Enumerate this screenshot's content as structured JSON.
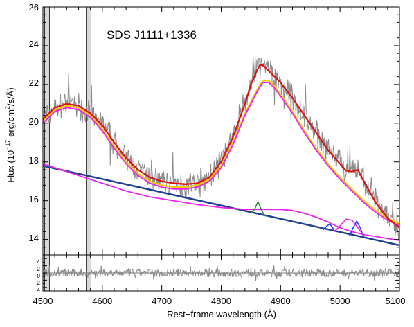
{
  "chart_data": {
    "type": "line",
    "title": "SDS J1111+1336",
    "xlabel": "Rest−frame wavelength (Å)",
    "ylabel_parts": {
      "pre": "Flux (10",
      "exp1": "−17",
      "mid": " erg/cm",
      "exp2": "2",
      "post": "/s/Å)"
    },
    "xlim": [
      4500,
      5100
    ],
    "ylim": [
      13.2,
      26
    ],
    "x_ticks": [
      "4500",
      "4600",
      "4700",
      "4800",
      "4900",
      "5000",
      "5100"
    ],
    "y_ticks": [
      "14",
      "16",
      "18",
      "20",
      "22",
      "24",
      "26"
    ],
    "residual_ylim": [
      -5,
      5
    ],
    "residual_ticks": [
      "4",
      "2",
      "0",
      "−2",
      "−4"
    ],
    "masked_regions": [
      [
        4503,
        4511
      ],
      [
        4573,
        4581
      ]
    ],
    "colors": {
      "data": "#8a8a8a",
      "total": "#dd1111",
      "broad": "#f5c800",
      "magenta": "#ee22ee",
      "continuum": "#1f3f8f",
      "green": "#2e8b2e",
      "blue": "#1f3fff",
      "mask": "#d8d8d8"
    },
    "series": [
      {
        "key": "total",
        "x": [
          4500,
          4520,
          4540,
          4560,
          4580,
          4600,
          4620,
          4640,
          4660,
          4680,
          4700,
          4720,
          4740,
          4760,
          4780,
          4800,
          4820,
          4840,
          4850,
          4860,
          4865,
          4870,
          4880,
          4890,
          4900,
          4920,
          4940,
          4960,
          4980,
          5000,
          5010,
          5020,
          5030,
          5040,
          5060,
          5080,
          5100
        ],
        "y": [
          20.2,
          20.8,
          21.0,
          20.9,
          20.5,
          19.9,
          19.0,
          18.2,
          17.6,
          17.2,
          17.0,
          16.9,
          16.85,
          16.9,
          17.2,
          18.0,
          19.3,
          21.0,
          22.0,
          22.7,
          23.0,
          23.0,
          22.7,
          22.4,
          22.1,
          21.3,
          20.4,
          19.5,
          18.6,
          17.9,
          17.55,
          17.5,
          17.6,
          17.0,
          15.9,
          15.1,
          14.6
        ]
      },
      {
        "key": "broad",
        "x": [
          4500,
          4520,
          4540,
          4560,
          4580,
          4600,
          4620,
          4640,
          4660,
          4680,
          4700,
          4720,
          4740,
          4760,
          4780,
          4800,
          4820,
          4840,
          4860,
          4870,
          4880,
          4890,
          4900,
          4920,
          4940,
          4960,
          4980,
          5000,
          5020,
          5040,
          5060,
          5080,
          5100
        ],
        "y": [
          20.1,
          20.7,
          20.9,
          20.8,
          20.4,
          19.7,
          18.8,
          18.0,
          17.4,
          17.0,
          16.8,
          16.7,
          16.7,
          16.8,
          17.1,
          17.8,
          19.0,
          20.5,
          21.7,
          22.2,
          22.2,
          21.9,
          21.5,
          20.6,
          19.6,
          18.7,
          17.9,
          17.2,
          16.6,
          16.0,
          15.5,
          15.1,
          14.8
        ]
      },
      {
        "key": "magenta_top",
        "x": [
          4500,
          4520,
          4540,
          4560,
          4580,
          4600,
          4620,
          4640,
          4660,
          4680,
          4700,
          4720,
          4740,
          4760,
          4780,
          4800,
          4820,
          4840,
          4860,
          4870,
          4880,
          4890,
          4900,
          4920,
          4940,
          4960,
          4980,
          5000,
          5020,
          5040,
          5060,
          5080,
          5100
        ],
        "y": [
          20.0,
          20.6,
          20.8,
          20.7,
          20.3,
          19.6,
          18.7,
          17.9,
          17.3,
          16.9,
          16.7,
          16.6,
          16.6,
          16.7,
          17.0,
          17.7,
          18.9,
          20.4,
          21.6,
          22.1,
          22.1,
          21.8,
          21.4,
          20.5,
          19.5,
          18.6,
          17.8,
          17.1,
          16.5,
          15.9,
          15.4,
          15.0,
          14.7
        ]
      },
      {
        "key": "magenta_low",
        "x": [
          4500,
          4520,
          4540,
          4560,
          4580,
          4600,
          4620,
          4640,
          4660,
          4680,
          4700,
          4720,
          4740,
          4760,
          4780,
          4800,
          4820,
          4840,
          4860,
          4880,
          4900,
          4920,
          4940,
          4960,
          4980,
          5000,
          5020,
          5040,
          5060,
          5080,
          5100
        ],
        "y": [
          17.9,
          17.7,
          17.5,
          17.3,
          17.1,
          16.9,
          16.7,
          16.5,
          16.35,
          16.2,
          16.1,
          16.0,
          15.9,
          15.8,
          15.72,
          15.65,
          15.6,
          15.55,
          15.55,
          15.55,
          15.55,
          15.5,
          15.35,
          15.15,
          14.9,
          14.6,
          14.4,
          14.25,
          14.15,
          14.05,
          13.95
        ]
      },
      {
        "key": "continuum",
        "x": [
          4500,
          5100
        ],
        "y": [
          17.8,
          13.7
        ]
      },
      {
        "key": "green",
        "x": [
          4850,
          4856,
          4862,
          4868,
          4874
        ],
        "y": [
          15.35,
          15.55,
          15.95,
          15.5,
          15.2
        ]
      },
      {
        "key": "blue1",
        "x": [
          4972,
          4978,
          4983,
          4990
        ],
        "y": [
          14.5,
          14.7,
          14.8,
          14.5
        ]
      },
      {
        "key": "blue2",
        "x": [
          5016,
          5022,
          5028,
          5034,
          5040
        ],
        "y": [
          14.2,
          14.6,
          14.95,
          14.6,
          14.1
        ]
      },
      {
        "key": "magenta_bump",
        "x": [
          4990,
          5000,
          5010,
          5020,
          5030,
          5040
        ],
        "y": [
          14.4,
          14.7,
          15.05,
          15.0,
          14.6,
          14.2
        ]
      }
    ]
  }
}
